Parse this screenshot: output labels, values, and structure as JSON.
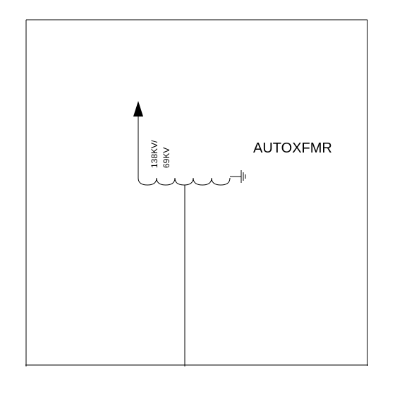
{
  "diagram": {
    "title": "AUTOXFMR",
    "voltage_line1": "138KV/",
    "voltage_line2": "69KV"
  },
  "colors": {
    "line": "#000000",
    "background": "#ffffff"
  }
}
